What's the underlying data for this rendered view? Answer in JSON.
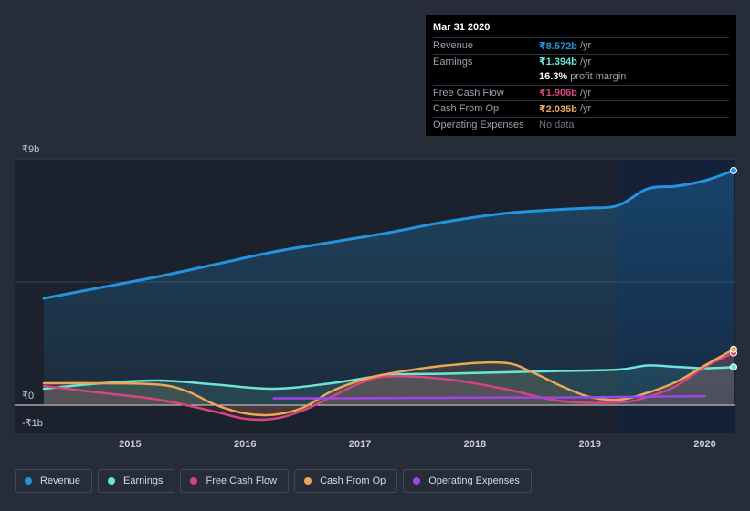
{
  "tooltip": {
    "date": "Mar 31 2020",
    "rows": [
      {
        "label": "Revenue",
        "value": "₹8.572b",
        "unit": "/yr",
        "color": "#2394df"
      },
      {
        "label": "Earnings",
        "value": "₹1.394b",
        "unit": "/yr",
        "color": "#6ce5d6"
      },
      {
        "label": "",
        "value": "16.3%",
        "unit": "profit margin",
        "color": "#ffffff"
      },
      {
        "label": "Free Cash Flow",
        "value": "₹1.906b",
        "unit": "/yr",
        "color": "#d6457f"
      },
      {
        "label": "Cash From Op",
        "value": "₹2.035b",
        "unit": "/yr",
        "color": "#e8a857"
      },
      {
        "label": "Operating Expenses",
        "value": "No data",
        "unit": "",
        "color": "#6f7683"
      }
    ]
  },
  "y_axis": {
    "top_label": "₹9b",
    "zero_label": "₹0",
    "bottom_label": "-₹1b"
  },
  "legend": [
    {
      "label": "Revenue",
      "color": "#2394df"
    },
    {
      "label": "Earnings",
      "color": "#6ce5d6"
    },
    {
      "label": "Free Cash Flow",
      "color": "#d6457f"
    },
    {
      "label": "Cash From Op",
      "color": "#e8a857"
    },
    {
      "label": "Operating Expenses",
      "color": "#9e45e8"
    }
  ],
  "chart_data": {
    "type": "area",
    "xlim": [
      2014.25,
      2020.25
    ],
    "ylim": [
      -1,
      9
    ],
    "x_ticks": [
      2015,
      2016,
      2017,
      2018,
      2019,
      2020
    ],
    "highlight_from": 2019.25,
    "series": [
      {
        "name": "Revenue",
        "color": "#2394df",
        "fill": true,
        "x": [
          2014.25,
          2014.75,
          2015.25,
          2015.75,
          2016.25,
          2016.75,
          2017.25,
          2017.75,
          2018.25,
          2018.75,
          2019.0,
          2019.25,
          2019.5,
          2019.75,
          2020.0,
          2020.25
        ],
        "y": [
          3.9,
          4.3,
          4.7,
          5.15,
          5.6,
          5.95,
          6.3,
          6.7,
          7.0,
          7.15,
          7.2,
          7.3,
          7.9,
          8.0,
          8.2,
          8.57
        ]
      },
      {
        "name": "Earnings",
        "color": "#6ce5d6",
        "fill": true,
        "x": [
          2014.25,
          2014.75,
          2015.25,
          2015.75,
          2016.25,
          2016.75,
          2017.25,
          2017.75,
          2018.25,
          2018.75,
          2019.25,
          2019.5,
          2019.75,
          2020.0,
          2020.25
        ],
        "y": [
          0.6,
          0.8,
          0.9,
          0.75,
          0.6,
          0.8,
          1.1,
          1.15,
          1.2,
          1.25,
          1.3,
          1.45,
          1.4,
          1.35,
          1.39
        ]
      },
      {
        "name": "Free Cash Flow",
        "color": "#d6457f",
        "fill": true,
        "x": [
          2014.25,
          2014.75,
          2015.25,
          2015.75,
          2016.0,
          2016.25,
          2016.5,
          2016.75,
          2017.0,
          2017.25,
          2017.75,
          2018.25,
          2018.75,
          2019.25,
          2019.5,
          2019.75,
          2020.0,
          2020.25
        ],
        "y": [
          0.7,
          0.45,
          0.2,
          -0.25,
          -0.5,
          -0.5,
          -0.2,
          0.3,
          0.8,
          1.05,
          0.95,
          0.6,
          0.15,
          0.1,
          0.3,
          0.7,
          1.4,
          1.91
        ]
      },
      {
        "name": "Cash From Op",
        "color": "#e8a857",
        "fill": true,
        "x": [
          2014.25,
          2014.75,
          2015.25,
          2015.5,
          2015.75,
          2016.0,
          2016.25,
          2016.5,
          2016.75,
          2017.0,
          2017.25,
          2017.75,
          2018.25,
          2018.5,
          2018.75,
          2019.0,
          2019.25,
          2019.5,
          2019.75,
          2020.0,
          2020.25
        ],
        "y": [
          0.8,
          0.8,
          0.75,
          0.5,
          0.0,
          -0.3,
          -0.35,
          -0.1,
          0.5,
          0.9,
          1.15,
          1.45,
          1.55,
          1.2,
          0.7,
          0.3,
          0.2,
          0.45,
          0.85,
          1.45,
          2.04
        ]
      },
      {
        "name": "Operating Expenses",
        "color": "#9e45e8",
        "fill": false,
        "x": [
          2016.25,
          2016.75,
          2017.25,
          2017.75,
          2018.25,
          2018.75,
          2019.25,
          2019.75,
          2020.0
        ],
        "y": [
          0.25,
          0.25,
          0.26,
          0.27,
          0.28,
          0.28,
          0.3,
          0.32,
          0.33
        ]
      }
    ]
  }
}
